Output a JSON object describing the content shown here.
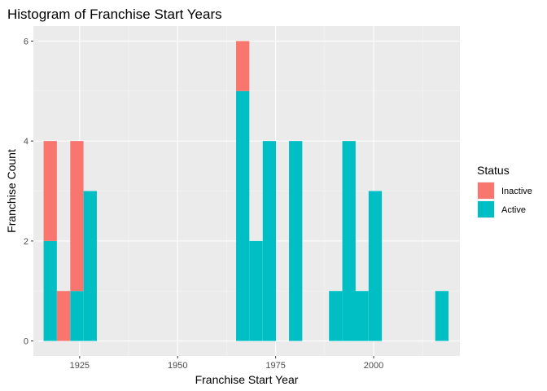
{
  "chart_data": {
    "type": "bar",
    "stacked": true,
    "title": "Histogram of Franchise Start Years",
    "xlabel": "Franchise Start Year",
    "ylabel": "Franchise Count",
    "xlim": [
      1913.2,
      2022.0
    ],
    "ylim": [
      -0.3,
      6.3
    ],
    "x_ticks": [
      1925,
      1950,
      1975,
      2000
    ],
    "y_ticks": [
      0,
      2,
      4,
      6
    ],
    "bin_width": 3.38,
    "grid": true,
    "legend": {
      "title": "Status",
      "position": "right",
      "entries": [
        {
          "name": "Inactive",
          "color": "#F8766D"
        },
        {
          "name": "Active",
          "color": "#00BFC4"
        }
      ]
    },
    "bin_centers": [
      1917.5,
      1920.9,
      1924.3,
      1927.7,
      1966.6,
      1970.0,
      1973.4,
      1980.1,
      1990.3,
      1993.7,
      1997.0,
      2000.4,
      2017.4
    ],
    "series": [
      {
        "name": "Active",
        "color": "#00BFC4",
        "values": [
          2,
          0,
          1,
          3,
          5,
          2,
          4,
          4,
          1,
          4,
          1,
          3,
          1
        ]
      },
      {
        "name": "Inactive",
        "color": "#F8766D",
        "values": [
          2,
          1,
          3,
          0,
          1,
          0,
          0,
          0,
          0,
          0,
          0,
          0,
          0
        ]
      }
    ]
  }
}
